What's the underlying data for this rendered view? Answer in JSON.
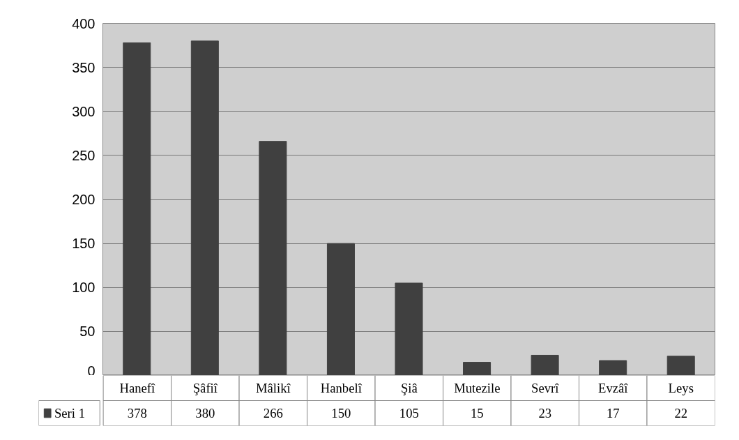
{
  "chart_data": {
    "type": "bar",
    "categories": [
      "Hanefî",
      "Şâfiî",
      "Mâlikî",
      "Hanbelî",
      "Şiâ",
      "Mutezile",
      "Sevrî",
      "Evzâî",
      "Leys"
    ],
    "series": [
      {
        "name": "Seri 1",
        "color": "#404040",
        "values": [
          378,
          380,
          266,
          150,
          105,
          15,
          23,
          17,
          22
        ]
      }
    ],
    "ylim": [
      0,
      400
    ],
    "yticks": [
      0,
      50,
      100,
      150,
      200,
      250,
      300,
      350,
      400
    ],
    "grid": "y",
    "legend": "bottom",
    "data_labels": true
  }
}
